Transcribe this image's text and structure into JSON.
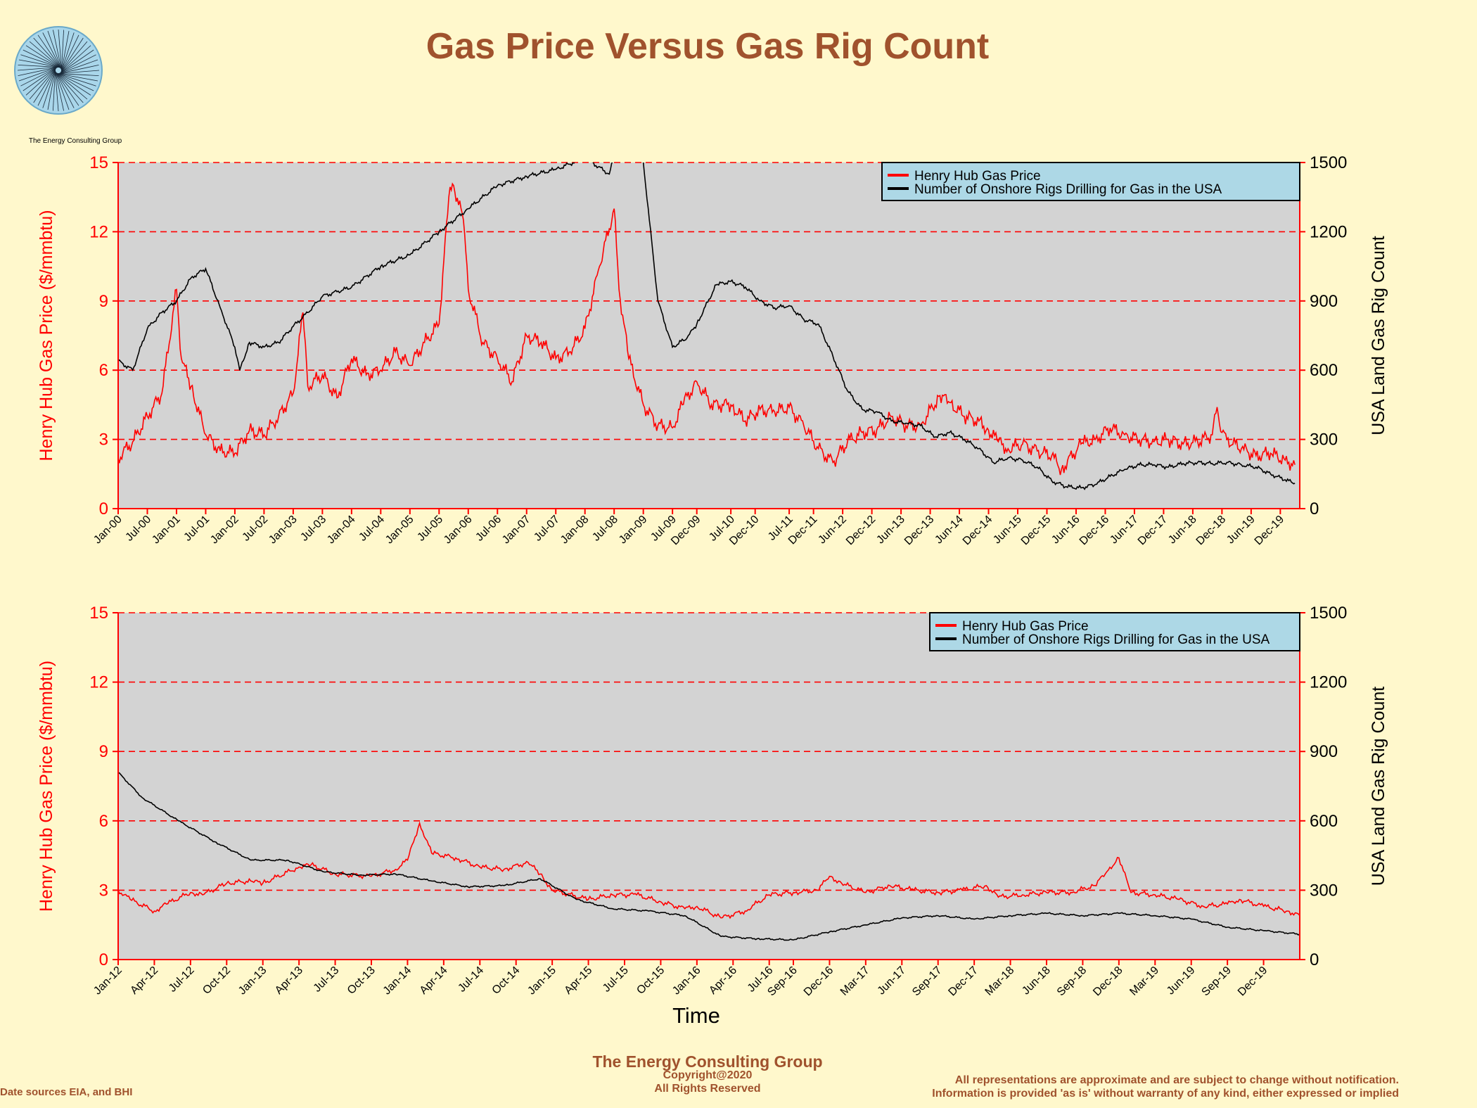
{
  "title": "Gas Price Versus Gas Rig Count",
  "logo": {
    "caption": "The Energy Consulting Group"
  },
  "footer": {
    "company": "The Energy Consulting Group",
    "copyright": "Copyright@2020",
    "rights": "All Rights Reserved",
    "sources": "Date sources EIA, and BHI",
    "disclaimer1": "All representations are approximate and are subject to change without notification.",
    "disclaimer2": "Information is provided 'as is' without warranty of any kind, either expressed or implied"
  },
  "colors": {
    "price": "#ff0000",
    "rigs": "#000000",
    "plot_bg": "#d3d3d3",
    "legend_bg": "#add8e6",
    "title": "#a0522d",
    "page_bg": "#fff8cc"
  },
  "chart_data": [
    {
      "type": "line",
      "xlabel": "",
      "ylabel_left": "Henry Hub Gas Price ($/mmbtu)",
      "ylabel_right": "USA Land Gas Rig Count",
      "xlim": [
        "Jan-00",
        "Apr-20"
      ],
      "ylim_left": [
        0,
        15
      ],
      "ylim_right": [
        0,
        1500
      ],
      "yticks_left": [
        "0",
        "3",
        "6",
        "9",
        "12",
        "15"
      ],
      "yticks_right": [
        "0",
        "300",
        "600",
        "900",
        "1200",
        "1500"
      ],
      "xticks": [
        "Jan-00",
        "Jul-00",
        "Jan-01",
        "Jul-01",
        "Jan-02",
        "Jul-02",
        "Jan-03",
        "Jul-03",
        "Jan-04",
        "Jul-04",
        "Jan-05",
        "Jul-05",
        "Jan-06",
        "Jul-06",
        "Jan-07",
        "Jul-07",
        "Jan-08",
        "Jul-08",
        "Jan-09",
        "Jul-09",
        "Dec-09",
        "Jul-10",
        "Dec-10",
        "Jul-11",
        "Dec-11",
        "Jun-12",
        "Dec-12",
        "Jun-13",
        "Dec-13",
        "Jun-14",
        "Dec-14",
        "Jun-15",
        "Dec-15",
        "Jun-16",
        "Dec-16",
        "Jun-17",
        "Dec-17",
        "Jun-18",
        "Dec-18",
        "Jun-19",
        "Dec-19"
      ],
      "grid": "dashed horizontal",
      "legend_position": "top-right",
      "series": [
        {
          "name": "Henry Hub Gas Price",
          "axis": "left",
          "x": [
            "Jan-00",
            "Apr-00",
            "Jul-00",
            "Oct-00",
            "Jan-01",
            "Feb-01",
            "Apr-01",
            "Jul-01",
            "Oct-01",
            "Jan-02",
            "Apr-02",
            "Jul-02",
            "Oct-02",
            "Jan-03",
            "Mar-03",
            "Apr-03",
            "Jul-03",
            "Oct-03",
            "Jan-04",
            "Apr-04",
            "Jul-04",
            "Oct-04",
            "Jan-05",
            "Apr-05",
            "Jul-05",
            "Sep-05",
            "Oct-05",
            "Dec-05",
            "Jan-06",
            "Apr-06",
            "Jul-06",
            "Oct-06",
            "Jan-07",
            "Apr-07",
            "Jul-07",
            "Oct-07",
            "Jan-08",
            "Apr-08",
            "Jul-08",
            "Aug-08",
            "Oct-08",
            "Jan-09",
            "Apr-09",
            "Jul-09",
            "Sep-09",
            "Dec-09",
            "Mar-10",
            "Jul-10",
            "Oct-10",
            "Jan-11",
            "Apr-11",
            "Jul-11",
            "Oct-11",
            "Jan-12",
            "Apr-12",
            "Jul-12",
            "Oct-12",
            "Jan-13",
            "Apr-13",
            "Jul-13",
            "Oct-13",
            "Feb-14",
            "Apr-14",
            "Jul-14",
            "Oct-14",
            "Dec-14",
            "Feb-15",
            "Apr-15",
            "Jul-15",
            "Oct-15",
            "Jan-16",
            "Mar-16",
            "Jul-16",
            "Oct-16",
            "Jan-17",
            "Apr-17",
            "Jul-17",
            "Oct-17",
            "Jan-18",
            "Apr-18",
            "Jul-18",
            "Oct-18",
            "Nov-18",
            "Dec-18",
            "Jan-19",
            "Apr-19",
            "Jul-19",
            "Oct-19",
            "Jan-20",
            "Mar-20"
          ],
          "values": [
            2.2,
            2.9,
            4.0,
            5.0,
            9.5,
            6.5,
            5.3,
            3.2,
            2.5,
            2.4,
            3.4,
            3.2,
            4.0,
            5.0,
            8.5,
            5.3,
            5.8,
            4.8,
            6.5,
            5.8,
            6.0,
            6.8,
            6.2,
            7.2,
            8.0,
            13.5,
            14.0,
            12.5,
            9.5,
            7.2,
            6.5,
            5.5,
            7.5,
            7.2,
            6.5,
            6.8,
            7.8,
            10.5,
            13.0,
            9.5,
            6.5,
            4.5,
            3.6,
            3.5,
            4.5,
            5.5,
            4.5,
            4.5,
            3.8,
            4.3,
            4.2,
            4.4,
            3.6,
            2.6,
            2.0,
            2.9,
            3.3,
            3.4,
            4.0,
            3.6,
            3.6,
            4.9,
            4.6,
            4.0,
            3.8,
            3.4,
            2.9,
            2.6,
            2.8,
            2.5,
            2.3,
            1.7,
            2.8,
            3.0,
            3.5,
            3.2,
            3.0,
            2.9,
            3.0,
            2.8,
            2.9,
            3.2,
            4.4,
            3.3,
            3.0,
            2.6,
            2.3,
            2.4,
            2.1,
            1.9
          ]
        },
        {
          "name": "Number of Onshore Rigs Drilling for Gas in the USA",
          "axis": "right",
          "x": [
            "Jan-00",
            "Apr-00",
            "Jul-00",
            "Oct-00",
            "Jan-01",
            "Apr-01",
            "Jul-01",
            "Oct-01",
            "Jan-02",
            "Feb-02",
            "Apr-02",
            "Jul-02",
            "Oct-02",
            "Jan-03",
            "Apr-03",
            "Jul-03",
            "Oct-03",
            "Jan-04",
            "Jul-04",
            "Jan-05",
            "Jul-05",
            "Jan-06",
            "Jul-06",
            "Jan-07",
            "Jul-07",
            "Jan-08",
            "Jun-08",
            "Aug-08",
            "Oct-08",
            "Jan-09",
            "Apr-09",
            "Jul-09",
            "Oct-09",
            "Dec-09",
            "Apr-10",
            "Jul-10",
            "Oct-10",
            "Jan-11",
            "Apr-11",
            "Jul-11",
            "Oct-11",
            "Jan-12",
            "Apr-12",
            "Jul-12",
            "Oct-12",
            "Jan-13",
            "Apr-13",
            "Jul-13",
            "Oct-13",
            "Jan-14",
            "Apr-14",
            "Jul-14",
            "Oct-14",
            "Jan-15",
            "Apr-15",
            "Jul-15",
            "Oct-15",
            "Jan-16",
            "Apr-16",
            "Jul-16",
            "Oct-16",
            "Jan-17",
            "Apr-17",
            "Jul-17",
            "Oct-17",
            "Jan-18",
            "Apr-18",
            "Jul-18",
            "Oct-18",
            "Jan-19",
            "Apr-19",
            "Jul-19",
            "Oct-19",
            "Jan-20",
            "Mar-20"
          ],
          "values": [
            640,
            600,
            780,
            850,
            900,
            1000,
            1040,
            870,
            700,
            600,
            720,
            700,
            720,
            790,
            850,
            920,
            940,
            960,
            1050,
            1100,
            1200,
            1300,
            1400,
            1440,
            1470,
            1520,
            1450,
            1600,
            1600,
            1500,
            900,
            700,
            740,
            800,
            970,
            985,
            960,
            900,
            870,
            880,
            820,
            800,
            660,
            510,
            430,
            420,
            380,
            370,
            360,
            310,
            330,
            300,
            260,
            200,
            220,
            210,
            180,
            120,
            95,
            90,
            105,
            140,
            170,
            190,
            190,
            180,
            195,
            200,
            195,
            200,
            190,
            180,
            150,
            125,
            110
          ]
        }
      ]
    },
    {
      "type": "line",
      "xlabel": "Time",
      "ylabel_left": "Henry Hub Gas Price ($/mmbtu)",
      "ylabel_right": "USA Land Gas Rig Count",
      "xlim": [
        "Jan-12",
        "Mar-20"
      ],
      "ylim_left": [
        0,
        15
      ],
      "ylim_right": [
        0,
        1500
      ],
      "yticks_left": [
        "0",
        "3",
        "6",
        "9",
        "12",
        "15"
      ],
      "yticks_right": [
        "0",
        "300",
        "600",
        "900",
        "1200",
        "1500"
      ],
      "xticks": [
        "Jan-12",
        "Apr-12",
        "Jul-12",
        "Oct-12",
        "Jan-13",
        "Apr-13",
        "Jul-13",
        "Oct-13",
        "Jan-14",
        "Apr-14",
        "Jul-14",
        "Oct-14",
        "Jan-15",
        "Apr-15",
        "Jul-15",
        "Oct-15",
        "Jan-16",
        "Apr-16",
        "Jul-16",
        "Sep-16",
        "Dec-16",
        "Mar-17",
        "Jun-17",
        "Sep-17",
        "Dec-17",
        "Mar-18",
        "Jun-18",
        "Sep-18",
        "Dec-18",
        "Mar-19",
        "Jun-19",
        "Sep-19",
        "Dec-19"
      ],
      "grid": "dashed horizontal",
      "legend_position": "top-right",
      "series": [
        {
          "name": "Henry Hub Gas Price",
          "axis": "left",
          "x": [
            "Jan-12",
            "Feb-12",
            "Apr-12",
            "May-12",
            "Jul-12",
            "Aug-12",
            "Oct-12",
            "Dec-12",
            "Jan-13",
            "Apr-13",
            "May-13",
            "Jul-13",
            "Oct-13",
            "Dec-13",
            "Jan-14",
            "Feb-14",
            "Mar-14",
            "May-14",
            "Jul-14",
            "Sep-14",
            "Nov-14",
            "Dec-14",
            "Jan-15",
            "Apr-15",
            "Jun-15",
            "Aug-15",
            "Oct-15",
            "Dec-15",
            "Jan-16",
            "Mar-16",
            "May-16",
            "Jul-16",
            "Sep-16",
            "Nov-16",
            "Dec-16",
            "Jan-17",
            "Mar-17",
            "May-17",
            "Jul-17",
            "Sep-17",
            "Nov-17",
            "Jan-18",
            "Feb-18",
            "Apr-18",
            "Jun-18",
            "Aug-18",
            "Oct-18",
            "Nov-18",
            "Dec-18",
            "Jan-19",
            "Mar-19",
            "May-19",
            "Jul-19",
            "Sep-19",
            "Oct-19",
            "Dec-19",
            "Feb-20",
            "Mar-20"
          ],
          "values": [
            3.0,
            2.6,
            2.1,
            2.4,
            2.9,
            2.8,
            3.3,
            3.4,
            3.3,
            4.0,
            4.1,
            3.7,
            3.6,
            3.9,
            4.3,
            5.9,
            4.6,
            4.4,
            4.0,
            3.9,
            4.2,
            3.7,
            3.0,
            2.6,
            2.8,
            2.8,
            2.5,
            2.2,
            2.3,
            1.8,
            2.1,
            2.8,
            2.9,
            3.0,
            3.6,
            3.3,
            2.9,
            3.2,
            3.0,
            2.9,
            3.0,
            3.2,
            2.7,
            2.8,
            2.9,
            2.9,
            3.2,
            3.8,
            4.4,
            2.9,
            2.8,
            2.6,
            2.3,
            2.4,
            2.6,
            2.3,
            2.1,
            1.9
          ]
        },
        {
          "name": "Number of Onshore Rigs Drilling for Gas in the USA",
          "axis": "right",
          "x": [
            "Jan-12",
            "Mar-12",
            "Jun-12",
            "Sep-12",
            "Dec-12",
            "Mar-13",
            "Jun-13",
            "Sep-13",
            "Dec-13",
            "Mar-14",
            "Jun-14",
            "Sep-14",
            "Dec-14",
            "Mar-15",
            "Jun-15",
            "Sep-15",
            "Dec-15",
            "Mar-16",
            "Jun-16",
            "Sep-16",
            "Dec-16",
            "Mar-17",
            "Jun-17",
            "Sep-17",
            "Dec-17",
            "Mar-18",
            "Jun-18",
            "Sep-18",
            "Dec-18",
            "Mar-19",
            "Jun-19",
            "Sep-19",
            "Dec-19",
            "Mar-20"
          ],
          "values": [
            810,
            700,
            600,
            510,
            430,
            430,
            380,
            365,
            370,
            340,
            315,
            320,
            350,
            260,
            220,
            210,
            190,
            100,
            90,
            85,
            120,
            150,
            180,
            190,
            175,
            190,
            200,
            190,
            200,
            190,
            175,
            140,
            125,
            110
          ]
        }
      ]
    }
  ]
}
